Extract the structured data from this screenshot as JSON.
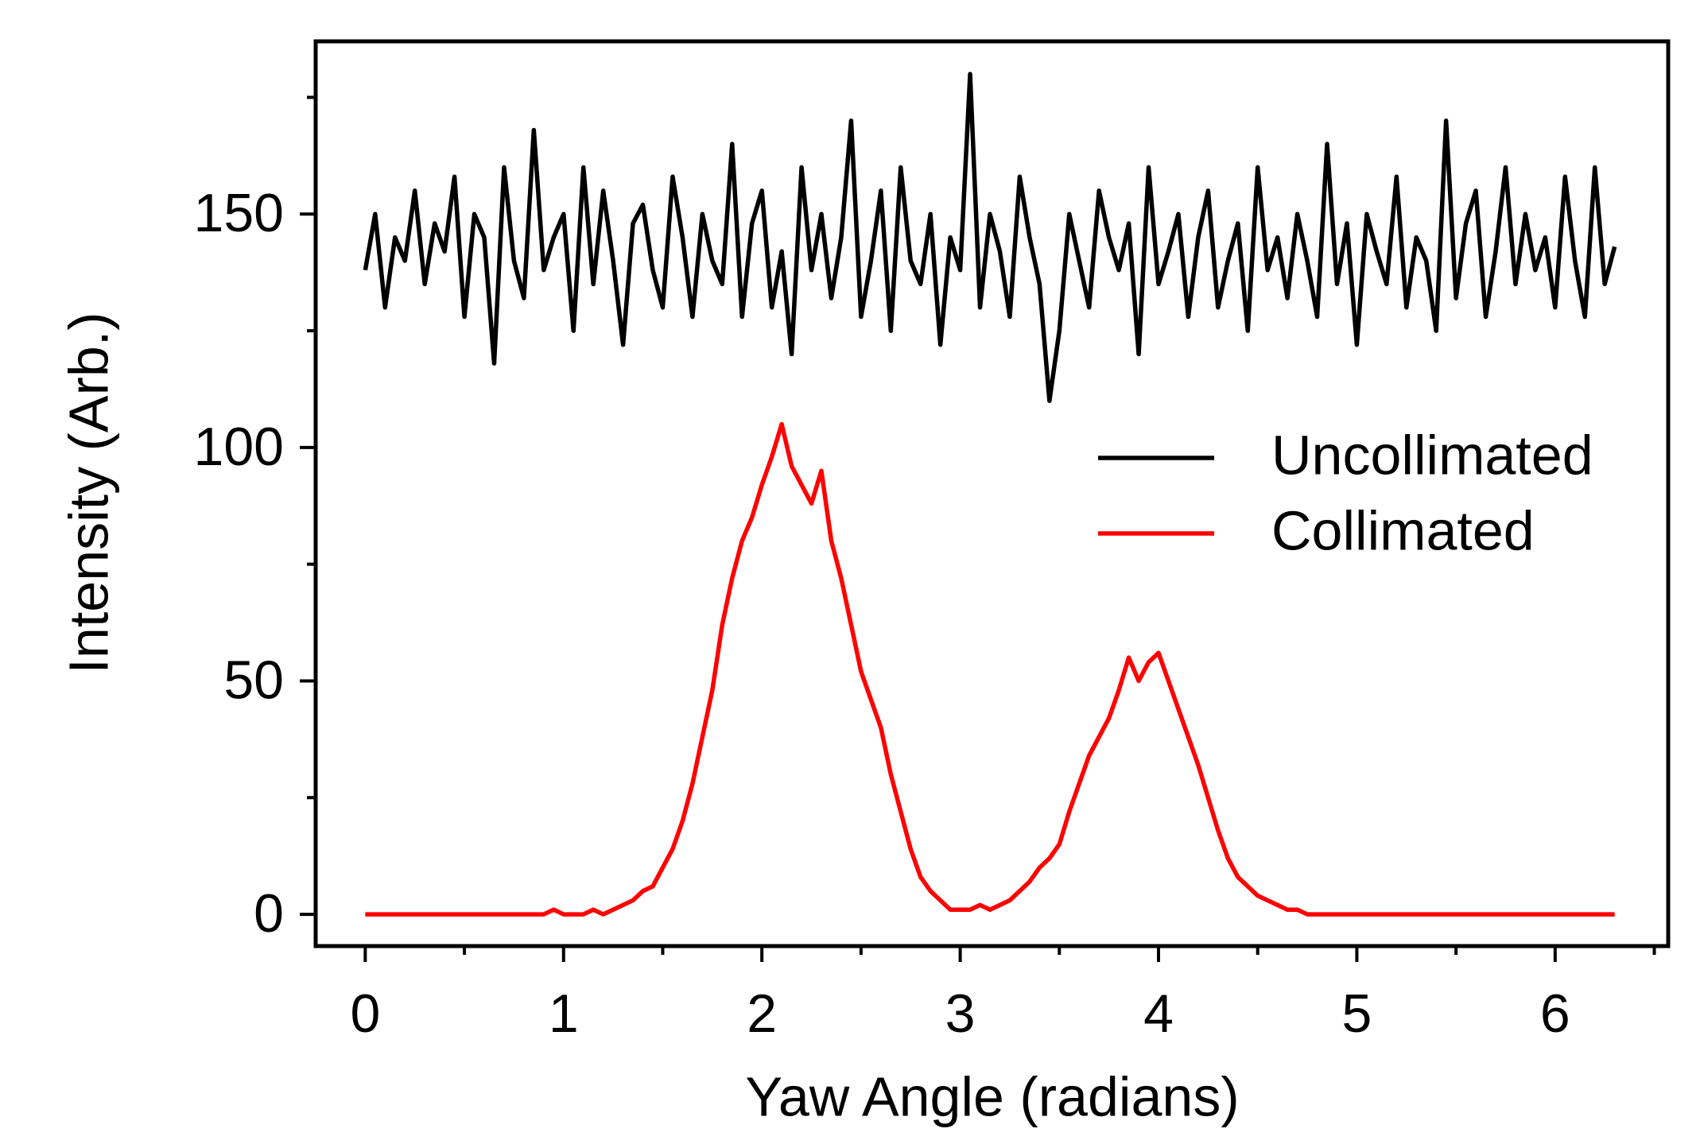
{
  "chart_data": {
    "type": "line",
    "xlabel": "Yaw Angle (radians)",
    "ylabel": "Intensity (Arb.)",
    "x": [
      0,
      0.05,
      0.1,
      0.15,
      0.2,
      0.25,
      0.3,
      0.35,
      0.4,
      0.45,
      0.5,
      0.55,
      0.6,
      0.65,
      0.7,
      0.75,
      0.8,
      0.85,
      0.9,
      0.95,
      1,
      1.05,
      1.1,
      1.15,
      1.2,
      1.25,
      1.3,
      1.35,
      1.4,
      1.45,
      1.5,
      1.55,
      1.6,
      1.65,
      1.7,
      1.75,
      1.8,
      1.85,
      1.9,
      1.95,
      2,
      2.05,
      2.1,
      2.15,
      2.2,
      2.25,
      2.3,
      2.35,
      2.4,
      2.45,
      2.5,
      2.55,
      2.6,
      2.65,
      2.7,
      2.75,
      2.8,
      2.85,
      2.9,
      2.95,
      3,
      3.05,
      3.1,
      3.15,
      3.2,
      3.25,
      3.3,
      3.35,
      3.4,
      3.45,
      3.5,
      3.55,
      3.6,
      3.65,
      3.7,
      3.75,
      3.8,
      3.85,
      3.9,
      3.95,
      4,
      4.05,
      4.1,
      4.15,
      4.2,
      4.25,
      4.3,
      4.35,
      4.4,
      4.45,
      4.5,
      4.55,
      4.6,
      4.65,
      4.7,
      4.75,
      4.8,
      4.85,
      4.9,
      4.95,
      5,
      5.05,
      5.1,
      5.15,
      5.2,
      5.25,
      5.3,
      5.35,
      5.4,
      5.45,
      5.5,
      5.55,
      5.6,
      5.65,
      5.7,
      5.75,
      5.8,
      5.85,
      5.9,
      5.95,
      6,
      6.05,
      6.1,
      6.15,
      6.2,
      6.25,
      6.3
    ],
    "series": [
      {
        "name": "Uncollimated",
        "color": "#000000",
        "values": [
          138,
          150,
          130,
          145,
          140,
          155,
          135,
          148,
          142,
          158,
          128,
          150,
          145,
          118,
          160,
          140,
          132,
          168,
          138,
          145,
          150,
          125,
          160,
          135,
          155,
          140,
          122,
          148,
          152,
          138,
          130,
          158,
          145,
          128,
          150,
          140,
          135,
          165,
          128,
          148,
          155,
          130,
          142,
          120,
          160,
          138,
          150,
          132,
          145,
          170,
          128,
          140,
          155,
          125,
          160,
          140,
          135,
          150,
          122,
          145,
          138,
          180,
          130,
          150,
          142,
          128,
          158,
          145,
          135,
          110,
          125,
          150,
          140,
          130,
          155,
          145,
          138,
          148,
          120,
          160,
          135,
          142,
          150,
          128,
          145,
          155,
          130,
          140,
          148,
          125,
          160,
          138,
          145,
          132,
          150,
          140,
          128,
          165,
          135,
          148,
          122,
          150,
          142,
          135,
          158,
          130,
          145,
          140,
          125,
          170,
          132,
          148,
          155,
          128,
          142,
          160,
          135,
          150,
          138,
          145,
          130,
          158,
          140,
          128,
          160,
          135,
          143
        ]
      },
      {
        "name": "Collimated",
        "color": "#ff0000",
        "values": [
          0,
          0,
          0,
          0,
          0,
          0,
          0,
          0,
          0,
          0,
          0,
          0,
          0,
          0,
          0,
          0,
          0,
          0,
          0,
          1,
          0,
          0,
          0,
          1,
          0,
          1,
          2,
          3,
          5,
          6,
          10,
          14,
          20,
          28,
          38,
          48,
          62,
          72,
          80,
          85,
          92,
          98,
          105,
          96,
          92,
          88,
          95,
          80,
          72,
          62,
          52,
          46,
          40,
          30,
          22,
          14,
          8,
          5,
          3,
          1,
          1,
          1,
          2,
          1,
          2,
          3,
          5,
          7,
          10,
          12,
          15,
          22,
          28,
          34,
          38,
          42,
          48,
          55,
          50,
          54,
          56,
          50,
          44,
          38,
          32,
          25,
          18,
          12,
          8,
          6,
          4,
          3,
          2,
          1,
          1,
          0,
          0,
          0,
          0,
          0,
          0,
          0,
          0,
          0,
          0,
          0,
          0,
          0,
          0,
          0,
          0,
          0,
          0,
          0,
          0,
          0,
          0,
          0,
          0,
          0,
          0,
          0,
          0,
          0,
          0,
          0,
          0
        ]
      }
    ],
    "xlim": [
      -0.25,
      6.57
    ],
    "ylim": [
      -6.8,
      187
    ],
    "xticks": [
      0,
      1,
      2,
      3,
      4,
      5,
      6
    ],
    "xminorticks": [
      0.5,
      1.5,
      2.5,
      3.5,
      4.5,
      5.5,
      6.5
    ],
    "yticks": [
      0,
      50,
      100,
      150
    ],
    "yminorticks": [
      25,
      75,
      125,
      175
    ],
    "grid": false,
    "legend": "center right"
  }
}
